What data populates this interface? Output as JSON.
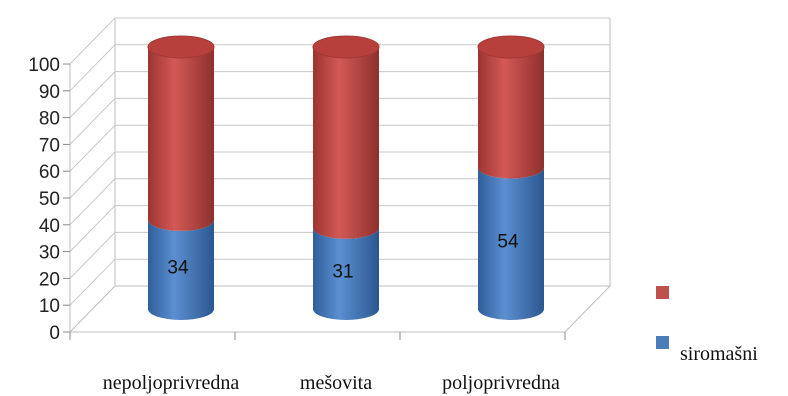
{
  "chart_data": {
    "type": "bar",
    "subtype": "stacked-3d-cylinder",
    "categories": [
      "nepoljoprivredna",
      "mešovita",
      "poljoprivredna"
    ],
    "series": [
      {
        "name": "siromašni",
        "values": [
          34,
          31,
          54
        ],
        "color": "#4a7ebb",
        "show_labels": true
      },
      {
        "name": "",
        "values": [
          66,
          69,
          46
        ],
        "color": "#c0504d",
        "show_labels": false
      }
    ],
    "y_ticks": [
      "0",
      "10",
      "20",
      "30",
      "40",
      "50",
      "60",
      "70",
      "80",
      "90",
      "100"
    ],
    "ylim": [
      0,
      100
    ],
    "grid": true,
    "legend_position": "right",
    "title": "",
    "xlabel": "",
    "ylabel": ""
  }
}
